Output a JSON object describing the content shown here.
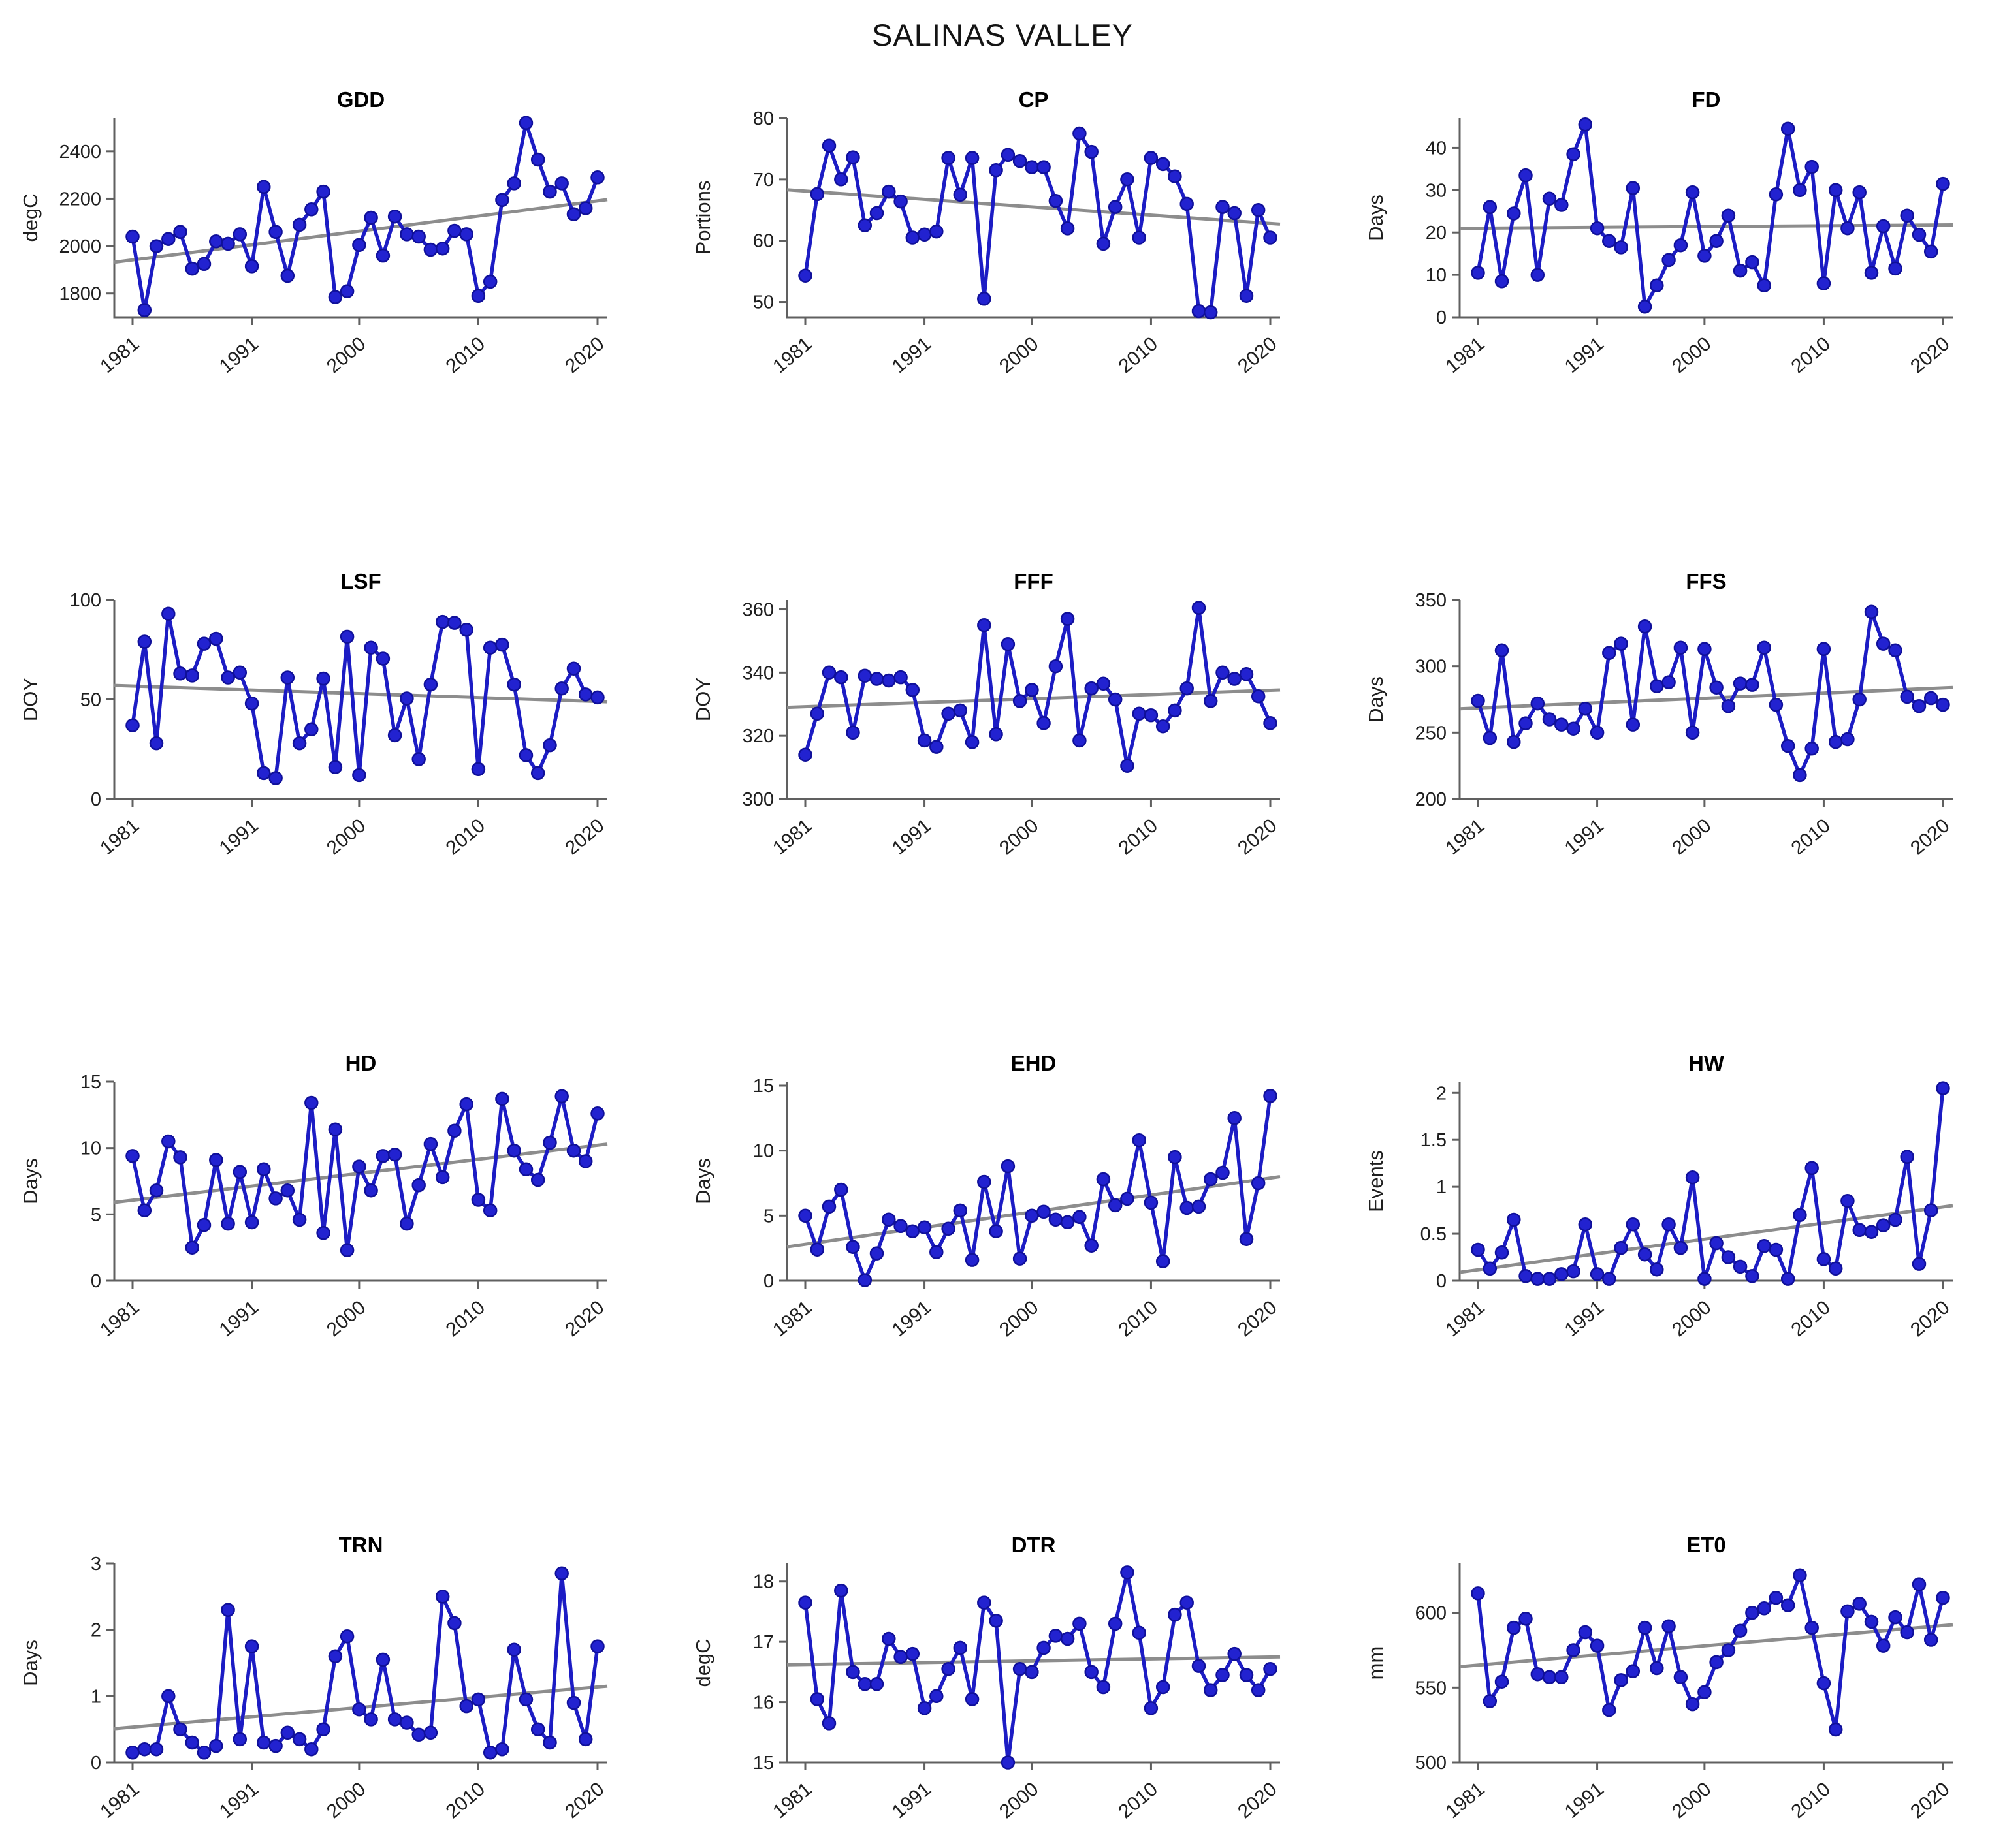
{
  "page_title": "SALINAS VALLEY",
  "colors": {
    "line": "#1c1cc4",
    "marker_fill": "#2222d0",
    "marker_edge": "#10109a",
    "trend": "#8d8d8d",
    "axis": "#606060",
    "tick_label": "#1f1f1f",
    "title": "#000000",
    "background": "#ffffff"
  },
  "chart_common": {
    "x_range": [
      1981,
      2020
    ],
    "xticks": [
      1981,
      1991,
      2000,
      2010,
      2020
    ],
    "grid": false,
    "legend": "none",
    "marker": "circle",
    "trend_line": "linear-fit-gray"
  },
  "chart_data": [
    {
      "id": "gdd",
      "type": "line",
      "title": "GDD",
      "ylabel": "degC",
      "ylim": [
        1700,
        2540
      ],
      "yticks": [
        1800,
        2000,
        2200,
        2400
      ],
      "trend": [
        1932,
        2196
      ],
      "values": [
        2040,
        1730,
        2000,
        2030,
        2060,
        1905,
        1925,
        2020,
        2010,
        2050,
        1915,
        2250,
        2060,
        1875,
        2090,
        2155,
        2230,
        1785,
        1810,
        2005,
        2120,
        1960,
        2125,
        2050,
        2040,
        1985,
        1990,
        2065,
        2050,
        1790,
        1850,
        2195,
        2265,
        2520,
        2365,
        2230,
        2265,
        2135,
        2160,
        2290
      ]
    },
    {
      "id": "cp",
      "type": "line",
      "title": "CP",
      "ylabel": "Portions",
      "ylim": [
        47.5,
        80
      ],
      "yticks": [
        50,
        60,
        70,
        80
      ],
      "trend": [
        68.3,
        62.7
      ],
      "values": [
        54.3,
        67.6,
        75.5,
        70,
        73.6,
        62.5,
        64.5,
        68,
        66.4,
        60.5,
        61,
        61.5,
        73.5,
        67.5,
        73.5,
        50.5,
        71.5,
        74,
        73,
        72,
        72,
        66.5,
        62,
        77.5,
        74.5,
        59.5,
        65.5,
        70,
        60.5,
        73.5,
        72.5,
        70.5,
        66,
        48.5,
        48.3,
        65.5,
        64.5,
        51,
        65,
        60.5
      ]
    },
    {
      "id": "fd",
      "type": "line",
      "title": "FD",
      "ylabel": "Days",
      "ylim": [
        0,
        47
      ],
      "yticks": [
        0,
        10,
        20,
        30,
        40
      ],
      "trend": [
        21.0,
        21.8
      ],
      "values": [
        10.5,
        26,
        8.5,
        24.5,
        33.5,
        10,
        28,
        26.5,
        38.5,
        45.5,
        21,
        18,
        16.5,
        30.5,
        2.5,
        7.5,
        13.5,
        17,
        29.5,
        14.5,
        18,
        24,
        11,
        13,
        7.5,
        29,
        44.5,
        30,
        35.5,
        8,
        30,
        21,
        29.5,
        10.5,
        21.5,
        11.5,
        24,
        19.5,
        15.5,
        31.5
      ]
    },
    {
      "id": "lsf",
      "type": "line",
      "title": "LSF",
      "ylabel": "DOY",
      "ylim": [
        0,
        100
      ],
      "yticks": [
        0,
        50,
        100
      ],
      "trend": [
        57,
        48.8
      ],
      "values": [
        37,
        79,
        28,
        93,
        63,
        62,
        78,
        80.5,
        61,
        63.5,
        48,
        13,
        10.5,
        61,
        28,
        35,
        60.5,
        16,
        81.5,
        12,
        76,
        70.5,
        32,
        50.5,
        20,
        57.5,
        89,
        88.5,
        85,
        15,
        76,
        77.5,
        57.5,
        22,
        13,
        27,
        55.5,
        65.5,
        52.5,
        51
      ]
    },
    {
      "id": "fff",
      "type": "line",
      "title": "FFF",
      "ylabel": "DOY",
      "ylim": [
        300,
        363
      ],
      "yticks": [
        300,
        320,
        340,
        360
      ],
      "trend": [
        329,
        334.5
      ],
      "values": [
        314,
        327,
        340,
        338.5,
        321,
        339,
        338,
        337.5,
        338.5,
        334.5,
        318.5,
        316.5,
        327,
        328,
        318,
        355,
        320.5,
        349,
        331,
        334.5,
        324,
        342,
        357,
        318.5,
        335,
        336.5,
        331.5,
        310.5,
        327,
        326.5,
        323,
        328,
        335,
        360.5,
        331,
        340,
        338,
        339.5,
        332.5,
        324
      ]
    },
    {
      "id": "ffs",
      "type": "line",
      "title": "FFS",
      "ylabel": "Days",
      "ylim": [
        200,
        350
      ],
      "yticks": [
        200,
        250,
        300,
        350
      ],
      "trend": [
        268,
        284
      ],
      "values": [
        274,
        246,
        312,
        243,
        257,
        272,
        260,
        256,
        253,
        268,
        250,
        310,
        317,
        256,
        330,
        285,
        288,
        314,
        250,
        313,
        284,
        270,
        287,
        286,
        314,
        271,
        240,
        218,
        238,
        313,
        243,
        245,
        275,
        341,
        317,
        312,
        277,
        270,
        276,
        271
      ]
    },
    {
      "id": "hd",
      "type": "line",
      "title": "HD",
      "ylabel": "Days",
      "ylim": [
        0,
        15
      ],
      "yticks": [
        0,
        5,
        10,
        15
      ],
      "trend": [
        5.9,
        10.3
      ],
      "values": [
        9.4,
        5.3,
        6.8,
        10.5,
        9.3,
        2.5,
        4.2,
        9.1,
        4.3,
        8.2,
        4.4,
        8.4,
        6.2,
        6.8,
        4.6,
        13.4,
        3.6,
        11.4,
        2.3,
        8.6,
        6.8,
        9.4,
        9.5,
        4.3,
        7.2,
        10.3,
        7.8,
        11.3,
        13.3,
        6.1,
        5.3,
        13.7,
        9.8,
        8.4,
        7.6,
        10.4,
        13.9,
        9.8,
        9.0,
        12.6
      ]
    },
    {
      "id": "ehd",
      "type": "line",
      "title": "EHD",
      "ylabel": "Days",
      "ylim": [
        0,
        15.3
      ],
      "yticks": [
        0,
        5,
        10,
        15
      ],
      "trend": [
        2.6,
        8.0
      ],
      "values": [
        5.0,
        2.4,
        5.7,
        7.0,
        2.6,
        0.05,
        2.1,
        4.7,
        4.2,
        3.8,
        4.1,
        2.2,
        4.0,
        5.4,
        1.6,
        7.6,
        3.8,
        8.8,
        1.7,
        5.0,
        5.3,
        4.7,
        4.5,
        4.9,
        2.7,
        7.8,
        5.8,
        6.3,
        10.8,
        6.0,
        1.5,
        9.5,
        5.6,
        5.7,
        7.8,
        8.3,
        12.5,
        3.2,
        7.5,
        14.2
      ]
    },
    {
      "id": "hw",
      "type": "line",
      "title": "HW",
      "ylabel": "Events",
      "ylim": [
        0,
        2.12
      ],
      "yticks": [
        0,
        0.5,
        1,
        1.5,
        2
      ],
      "trend": [
        0.09,
        0.8
      ],
      "values": [
        0.33,
        0.13,
        0.3,
        0.65,
        0.05,
        0.02,
        0.02,
        0.07,
        0.1,
        0.6,
        0.07,
        0.02,
        0.35,
        0.6,
        0.28,
        0.12,
        0.6,
        0.35,
        1.1,
        0.02,
        0.4,
        0.25,
        0.15,
        0.05,
        0.37,
        0.33,
        0.02,
        0.7,
        1.2,
        0.23,
        0.13,
        0.85,
        0.54,
        0.52,
        0.59,
        0.65,
        1.32,
        0.18,
        0.75,
        2.05
      ]
    },
    {
      "id": "trn",
      "type": "line",
      "title": "TRN",
      "ylabel": "Days",
      "ylim": [
        0,
        3
      ],
      "yticks": [
        0,
        1,
        2,
        3
      ],
      "trend": [
        0.51,
        1.15
      ],
      "values": [
        0.15,
        0.2,
        0.2,
        1.0,
        0.5,
        0.3,
        0.15,
        0.25,
        2.3,
        0.35,
        1.75,
        0.3,
        0.25,
        0.45,
        0.35,
        0.2,
        0.5,
        1.6,
        1.9,
        0.8,
        0.65,
        1.55,
        0.65,
        0.6,
        0.42,
        0.45,
        2.5,
        2.1,
        0.85,
        0.95,
        0.15,
        0.2,
        1.7,
        0.95,
        0.5,
        0.3,
        2.85,
        0.9,
        0.35,
        1.75
      ]
    },
    {
      "id": "dtr",
      "type": "line",
      "title": "DTR",
      "ylabel": "degC",
      "ylim": [
        15,
        18.3
      ],
      "yticks": [
        15,
        16,
        17,
        18
      ],
      "trend": [
        16.62,
        16.75
      ],
      "values": [
        17.65,
        16.05,
        15.65,
        17.85,
        16.5,
        16.3,
        16.3,
        17.05,
        16.75,
        16.8,
        15.9,
        16.1,
        16.55,
        16.9,
        16.05,
        17.65,
        17.35,
        15.0,
        16.55,
        16.5,
        16.9,
        17.1,
        17.05,
        17.3,
        16.5,
        16.25,
        17.3,
        18.15,
        17.15,
        15.9,
        16.25,
        17.45,
        17.65,
        16.6,
        16.2,
        16.45,
        16.8,
        16.45,
        16.2,
        16.55
      ]
    },
    {
      "id": "et0",
      "type": "line",
      "title": "ET0",
      "ylabel": "mm",
      "ylim": [
        500,
        633
      ],
      "yticks": [
        500,
        550,
        600
      ],
      "trend": [
        564,
        592
      ],
      "values": [
        613,
        541,
        554,
        590,
        596,
        559,
        557,
        557,
        575,
        587,
        578,
        535,
        555,
        561,
        590,
        563,
        591,
        557,
        539,
        547,
        567,
        575,
        588,
        600,
        603,
        610,
        605,
        625,
        590,
        553,
        522,
        601,
        606,
        594,
        578,
        597,
        587,
        619,
        582,
        610
      ]
    }
  ]
}
